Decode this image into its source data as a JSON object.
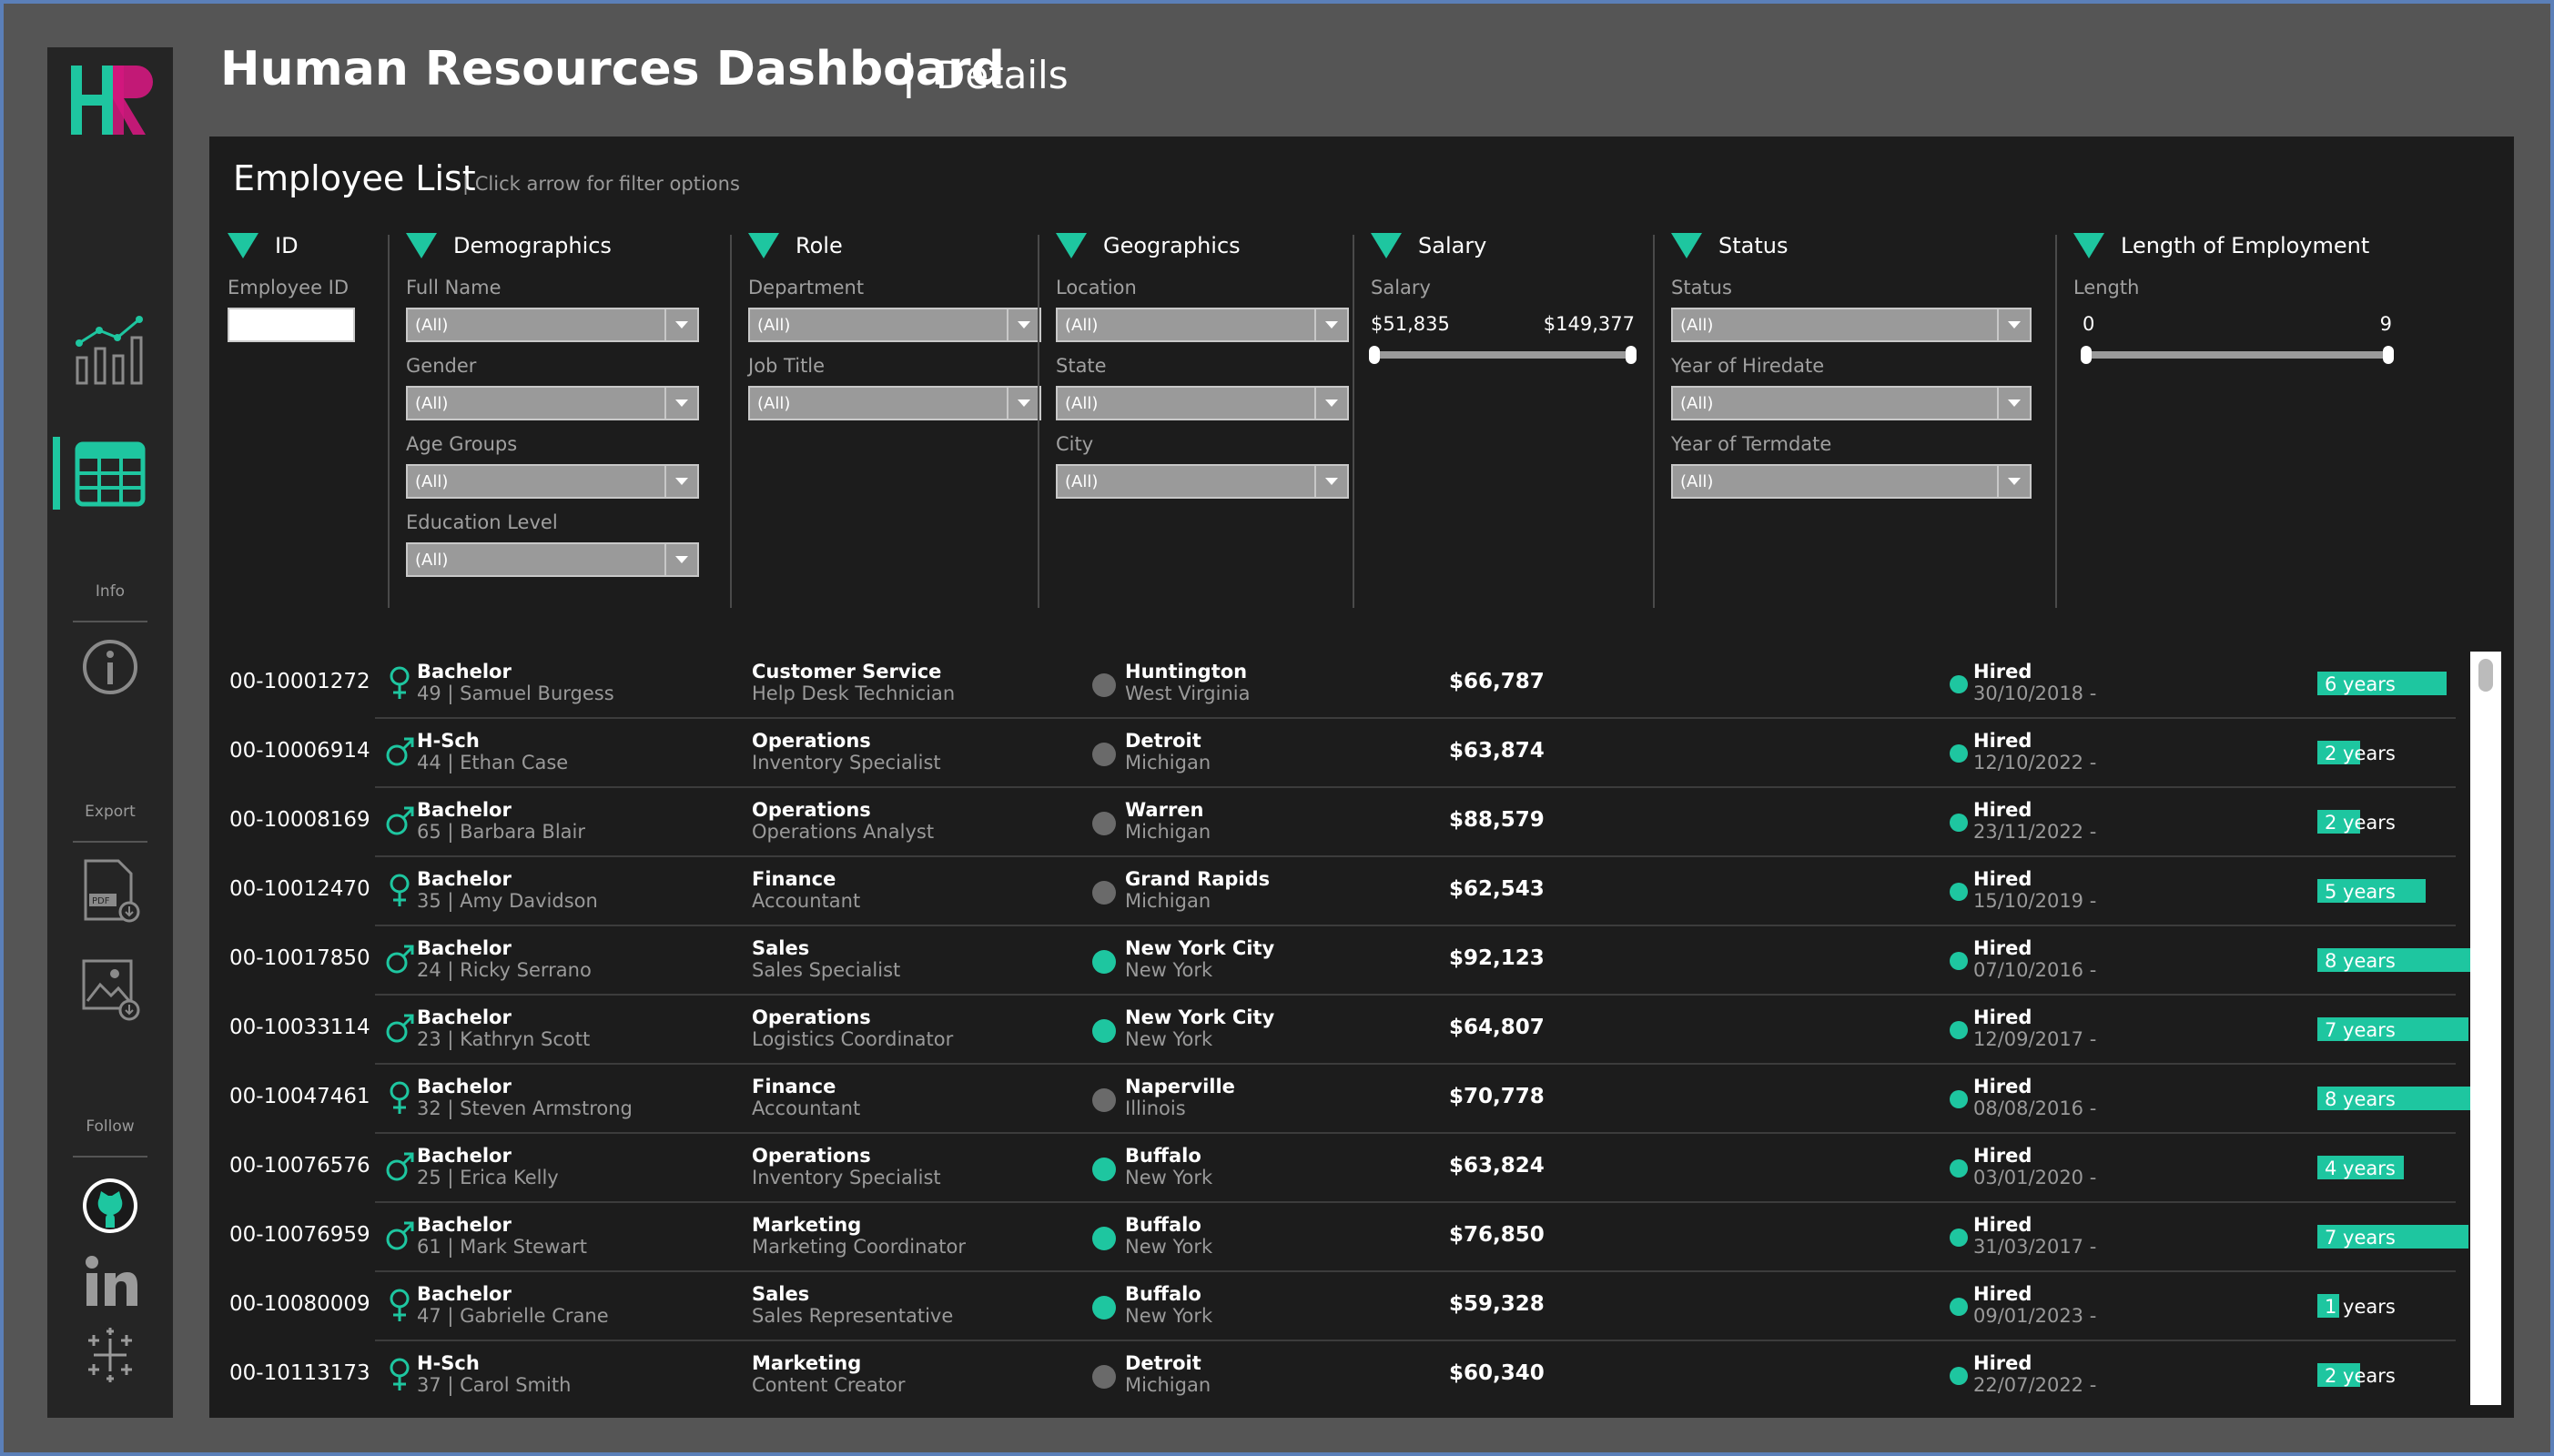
{
  "header": {
    "title": "Human Resources Dashboard",
    "separator": "|",
    "subtitle": "Details"
  },
  "sidebar": {
    "logo": "HR",
    "info_label": "Info",
    "export_label": "Export",
    "follow_label": "Follow",
    "icons": [
      "overview-chart-icon",
      "details-table-icon",
      "info-icon",
      "pdf-export-icon",
      "image-export-icon",
      "github-icon",
      "linkedin-icon",
      "tableau-icon"
    ]
  },
  "panel": {
    "title": "Employee List",
    "hint": "| Click arrow for filter options"
  },
  "filters": {
    "id": {
      "title": "ID",
      "label": "Employee ID"
    },
    "demographics": {
      "title": "Demographics",
      "full_name": "Full Name",
      "full_name_value": "(All)",
      "gender": "Gender",
      "gender_value": "(All)",
      "age_groups": "Age Groups",
      "age_groups_value": "(All)",
      "education": "Education Level",
      "education_value": "(All)"
    },
    "role": {
      "title": "Role",
      "department": "Department",
      "department_value": "(All)",
      "job_title": "Job Title",
      "job_title_value": "(All)"
    },
    "geographics": {
      "title": "Geographics",
      "location": "Location",
      "location_value": "(All)",
      "state": "State",
      "state_value": "(All)",
      "city": "City",
      "city_value": "(All)"
    },
    "salary": {
      "title": "Salary",
      "label": "Salary",
      "min": "$51,835",
      "max": "$149,377"
    },
    "status": {
      "title": "Status",
      "status": "Status",
      "status_value": "(All)",
      "hire_year": "Year of Hiredate",
      "hire_year_value": "(All)",
      "term_year": "Year of Termdate",
      "term_year_value": "(All)"
    },
    "length": {
      "title": "Length of Employment",
      "label": "Length",
      "min": "0",
      "max": "9"
    }
  },
  "colors": {
    "accent": "#1ec6a0",
    "grey_dot": "#6a6a6a",
    "panel": "#1c1c1c"
  },
  "employees": [
    {
      "id": "00-10001272",
      "gender": "female",
      "education": "Bachelor",
      "age_name": "49 | Samuel Burgess",
      "dept": "Customer Service",
      "job": "Help Desk Technician",
      "loc_type": "remote",
      "city": "Huntington",
      "state": "West Virginia",
      "salary": "$66,787",
      "status": "Hired",
      "date": "30/10/2018 -",
      "years": 6,
      "length": "6 years"
    },
    {
      "id": "00-10006914",
      "gender": "male",
      "education": "H-Sch",
      "age_name": "44 | Ethan Case",
      "dept": "Operations",
      "job": "Inventory Specialist",
      "loc_type": "remote",
      "city": "Detroit",
      "state": "Michigan",
      "salary": "$63,874",
      "status": "Hired",
      "date": "12/10/2022 -",
      "years": 2,
      "length": "2 years"
    },
    {
      "id": "00-10008169",
      "gender": "male",
      "education": "Bachelor",
      "age_name": "65 | Barbara Blair",
      "dept": "Operations",
      "job": "Operations Analyst",
      "loc_type": "remote",
      "city": "Warren",
      "state": "Michigan",
      "salary": "$88,579",
      "status": "Hired",
      "date": "23/11/2022 -",
      "years": 2,
      "length": "2 years"
    },
    {
      "id": "00-10012470",
      "gender": "female",
      "education": "Bachelor",
      "age_name": "35 | Amy Davidson",
      "dept": "Finance",
      "job": "Accountant",
      "loc_type": "remote",
      "city": "Grand Rapids",
      "state": "Michigan",
      "salary": "$62,543",
      "status": "Hired",
      "date": "15/10/2019 -",
      "years": 5,
      "length": "5 years"
    },
    {
      "id": "00-10017850",
      "gender": "male",
      "education": "Bachelor",
      "age_name": "24 | Ricky Serrano",
      "dept": "Sales",
      "job": "Sales Specialist",
      "loc_type": "hq",
      "city": "New York City",
      "state": "New York",
      "salary": "$92,123",
      "status": "Hired",
      "date": "07/10/2016 -",
      "years": 8,
      "length": "8 years"
    },
    {
      "id": "00-10033114",
      "gender": "male",
      "education": "Bachelor",
      "age_name": "23 | Kathryn Scott",
      "dept": "Operations",
      "job": "Logistics Coordinator",
      "loc_type": "hq",
      "city": "New York City",
      "state": "New York",
      "salary": "$64,807",
      "status": "Hired",
      "date": "12/09/2017 -",
      "years": 7,
      "length": "7 years"
    },
    {
      "id": "00-10047461",
      "gender": "female",
      "education": "Bachelor",
      "age_name": "32 | Steven Armstrong",
      "dept": "Finance",
      "job": "Accountant",
      "loc_type": "remote",
      "city": "Naperville",
      "state": "Illinois",
      "salary": "$70,778",
      "status": "Hired",
      "date": "08/08/2016 -",
      "years": 8,
      "length": "8 years"
    },
    {
      "id": "00-10076576",
      "gender": "male",
      "education": "Bachelor",
      "age_name": "25 | Erica Kelly",
      "dept": "Operations",
      "job": "Inventory Specialist",
      "loc_type": "hq",
      "city": "Buffalo",
      "state": "New York",
      "salary": "$63,824",
      "status": "Hired",
      "date": "03/01/2020 -",
      "years": 4,
      "length": "4 years"
    },
    {
      "id": "00-10076959",
      "gender": "male",
      "education": "Bachelor",
      "age_name": "61 | Mark Stewart",
      "dept": "Marketing",
      "job": "Marketing Coordinator",
      "loc_type": "hq",
      "city": "Buffalo",
      "state": "New York",
      "salary": "$76,850",
      "status": "Hired",
      "date": "31/03/2017 -",
      "years": 7,
      "length": "7 years"
    },
    {
      "id": "00-10080009",
      "gender": "female",
      "education": "Bachelor",
      "age_name": "47 | Gabrielle Crane",
      "dept": "Sales",
      "job": "Sales Representative",
      "loc_type": "hq",
      "city": "Buffalo",
      "state": "New York",
      "salary": "$59,328",
      "status": "Hired",
      "date": "09/01/2023 -",
      "years": 1,
      "length": "1 years"
    },
    {
      "id": "00-10113173",
      "gender": "female",
      "education": "H-Sch",
      "age_name": "37 | Carol Smith",
      "dept": "Marketing",
      "job": "Content Creator",
      "loc_type": "remote",
      "city": "Detroit",
      "state": "Michigan",
      "salary": "$60,340",
      "status": "Hired",
      "date": "22/07/2022 -",
      "years": 2,
      "length": "2 years"
    }
  ]
}
